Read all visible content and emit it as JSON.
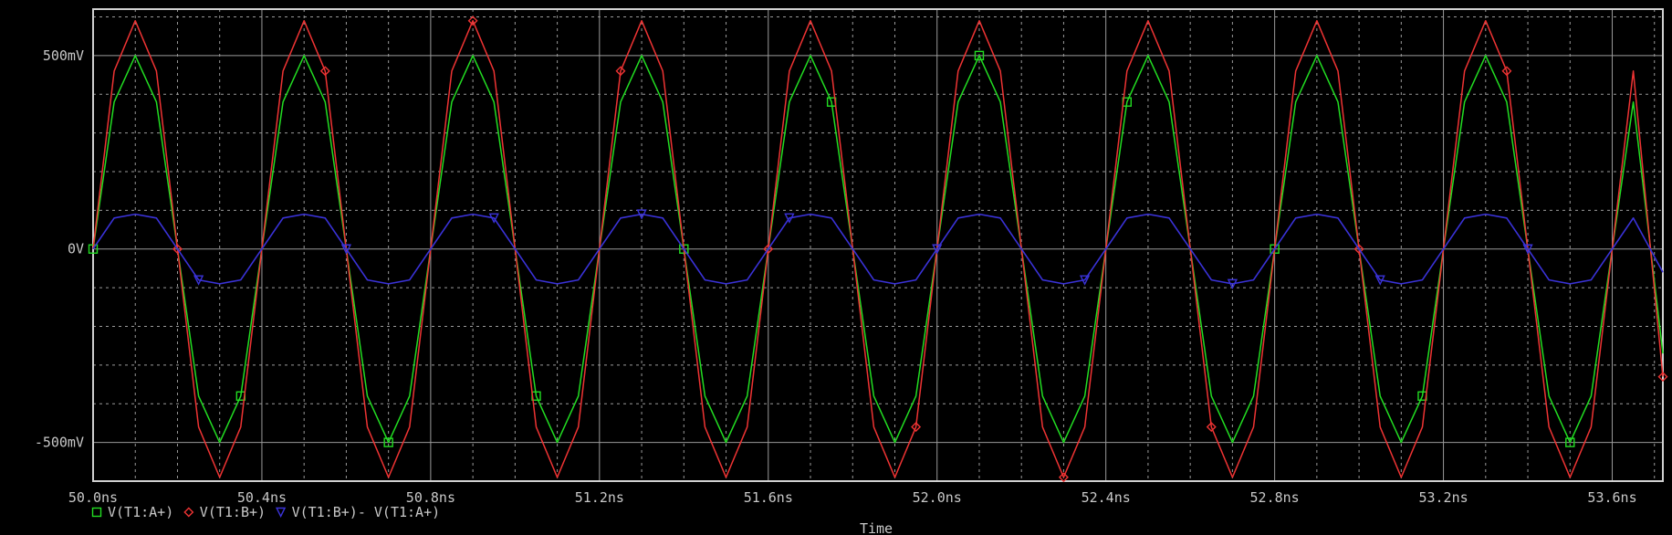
{
  "chart_data": {
    "type": "line",
    "xlabel": "Time",
    "x_unit": "ns",
    "xlim": [
      50.0,
      53.72
    ],
    "ylim": [
      -0.6,
      0.62
    ],
    "y_unit": "V",
    "grid": true,
    "background": "#000000",
    "x_ticks": [
      {
        "value": 50.0,
        "label": "50.0ns"
      },
      {
        "value": 50.4,
        "label": "50.4ns"
      },
      {
        "value": 50.8,
        "label": "50.8ns"
      },
      {
        "value": 51.2,
        "label": "51.2ns"
      },
      {
        "value": 51.6,
        "label": "51.6ns"
      },
      {
        "value": 52.0,
        "label": "52.0ns"
      },
      {
        "value": 52.4,
        "label": "52.4ns"
      },
      {
        "value": 52.8,
        "label": "52.8ns"
      },
      {
        "value": 53.2,
        "label": "53.2ns"
      },
      {
        "value": 53.6,
        "label": "53.6ns"
      }
    ],
    "y_ticks": [
      {
        "value": 0.5,
        "label": "500mV"
      },
      {
        "value": 0.0,
        "label": "0V"
      },
      {
        "value": -0.5,
        "label": "-500mV"
      }
    ],
    "series": [
      {
        "name": "V(T1:A+)",
        "color": "#22dd22",
        "marker": "square",
        "x": [
          50.0,
          50.05,
          50.1,
          50.15,
          50.2,
          50.25,
          50.3,
          50.35,
          50.4,
          50.45,
          50.5,
          50.55,
          50.6,
          50.65,
          50.7,
          50.75,
          50.8,
          50.85,
          50.9,
          50.95,
          51.0,
          51.05,
          51.1,
          51.15,
          51.2,
          51.25,
          51.3,
          51.35,
          51.4,
          51.45,
          51.5,
          51.55,
          51.6,
          51.65,
          51.7,
          51.75,
          51.8,
          51.85,
          51.9,
          51.95,
          52.0,
          52.05,
          52.1,
          52.15,
          52.2,
          52.25,
          52.3,
          52.35,
          52.4,
          52.45,
          52.5,
          52.55,
          52.6,
          52.65,
          52.7,
          52.75,
          52.8,
          52.85,
          52.9,
          52.95,
          53.0,
          53.05,
          53.1,
          53.15,
          53.2,
          53.25,
          53.3,
          53.35,
          53.4,
          53.45,
          53.5,
          53.55,
          53.6,
          53.65,
          53.72
        ],
        "y": [
          0.0,
          0.38,
          0.5,
          0.38,
          0.0,
          -0.38,
          -0.5,
          -0.38,
          0.0,
          0.38,
          0.5,
          0.38,
          0.0,
          -0.38,
          -0.5,
          -0.38,
          0.0,
          0.38,
          0.5,
          0.38,
          0.0,
          -0.38,
          -0.5,
          -0.38,
          0.0,
          0.38,
          0.5,
          0.38,
          0.0,
          -0.38,
          -0.5,
          -0.38,
          0.0,
          0.38,
          0.5,
          0.38,
          0.0,
          -0.38,
          -0.5,
          -0.38,
          0.0,
          0.38,
          0.5,
          0.38,
          0.0,
          -0.38,
          -0.5,
          -0.38,
          0.0,
          0.38,
          0.5,
          0.38,
          0.0,
          -0.38,
          -0.5,
          -0.38,
          0.0,
          0.38,
          0.5,
          0.38,
          0.0,
          -0.38,
          -0.5,
          -0.38,
          0.0,
          0.38,
          0.5,
          0.38,
          0.0,
          -0.38,
          -0.5,
          -0.38,
          0.0,
          0.38,
          -0.27
        ]
      },
      {
        "name": "V(T1:B+)",
        "color": "#ee3333",
        "marker": "diamond",
        "x": [
          50.0,
          50.05,
          50.1,
          50.15,
          50.2,
          50.25,
          50.3,
          50.35,
          50.4,
          50.45,
          50.5,
          50.55,
          50.6,
          50.65,
          50.7,
          50.75,
          50.8,
          50.85,
          50.9,
          50.95,
          51.0,
          51.05,
          51.1,
          51.15,
          51.2,
          51.25,
          51.3,
          51.35,
          51.4,
          51.45,
          51.5,
          51.55,
          51.6,
          51.65,
          51.7,
          51.75,
          51.8,
          51.85,
          51.9,
          51.95,
          52.0,
          52.05,
          52.1,
          52.15,
          52.2,
          52.25,
          52.3,
          52.35,
          52.4,
          52.45,
          52.5,
          52.55,
          52.6,
          52.65,
          52.7,
          52.75,
          52.8,
          52.85,
          52.9,
          52.95,
          53.0,
          53.05,
          53.1,
          53.15,
          53.2,
          53.25,
          53.3,
          53.35,
          53.4,
          53.45,
          53.5,
          53.55,
          53.6,
          53.65,
          53.72
        ],
        "y": [
          0.0,
          0.46,
          0.59,
          0.46,
          0.0,
          -0.46,
          -0.59,
          -0.46,
          0.0,
          0.46,
          0.59,
          0.46,
          0.0,
          -0.46,
          -0.59,
          -0.46,
          0.0,
          0.46,
          0.59,
          0.46,
          0.0,
          -0.46,
          -0.59,
          -0.46,
          0.0,
          0.46,
          0.59,
          0.46,
          0.0,
          -0.46,
          -0.59,
          -0.46,
          0.0,
          0.46,
          0.59,
          0.46,
          0.0,
          -0.46,
          -0.59,
          -0.46,
          0.0,
          0.46,
          0.59,
          0.46,
          0.0,
          -0.46,
          -0.59,
          -0.46,
          0.0,
          0.46,
          0.59,
          0.46,
          0.0,
          -0.46,
          -0.59,
          -0.46,
          0.0,
          0.46,
          0.59,
          0.46,
          0.0,
          -0.46,
          -0.59,
          -0.46,
          0.0,
          0.46,
          0.59,
          0.46,
          0.0,
          -0.46,
          -0.59,
          -0.46,
          0.0,
          0.46,
          -0.33
        ]
      },
      {
        "name": "V(T1:B+)- V(T1:A+)",
        "color": "#3a32d8",
        "marker": "triangle-down",
        "x": [
          50.0,
          50.05,
          50.1,
          50.15,
          50.2,
          50.25,
          50.3,
          50.35,
          50.4,
          50.45,
          50.5,
          50.55,
          50.6,
          50.65,
          50.7,
          50.75,
          50.8,
          50.85,
          50.9,
          50.95,
          51.0,
          51.05,
          51.1,
          51.15,
          51.2,
          51.25,
          51.3,
          51.35,
          51.4,
          51.45,
          51.5,
          51.55,
          51.6,
          51.65,
          51.7,
          51.75,
          51.8,
          51.85,
          51.9,
          51.95,
          52.0,
          52.05,
          52.1,
          52.15,
          52.2,
          52.25,
          52.3,
          52.35,
          52.4,
          52.45,
          52.5,
          52.55,
          52.6,
          52.65,
          52.7,
          52.75,
          52.8,
          52.85,
          52.9,
          52.95,
          53.0,
          53.05,
          53.1,
          53.15,
          53.2,
          53.25,
          53.3,
          53.35,
          53.4,
          53.45,
          53.5,
          53.55,
          53.6,
          53.65,
          53.72
        ],
        "y": [
          0.0,
          0.08,
          0.09,
          0.08,
          0.0,
          -0.08,
          -0.09,
          -0.08,
          0.0,
          0.08,
          0.09,
          0.08,
          0.0,
          -0.08,
          -0.09,
          -0.08,
          0.0,
          0.08,
          0.09,
          0.08,
          0.0,
          -0.08,
          -0.09,
          -0.08,
          0.0,
          0.08,
          0.09,
          0.08,
          0.0,
          -0.08,
          -0.09,
          -0.08,
          0.0,
          0.08,
          0.09,
          0.08,
          0.0,
          -0.08,
          -0.09,
          -0.08,
          0.0,
          0.08,
          0.09,
          0.08,
          0.0,
          -0.08,
          -0.09,
          -0.08,
          0.0,
          0.08,
          0.09,
          0.08,
          0.0,
          -0.08,
          -0.09,
          -0.08,
          0.0,
          0.08,
          0.09,
          0.08,
          0.0,
          -0.08,
          -0.09,
          -0.08,
          0.0,
          0.08,
          0.09,
          0.08,
          0.0,
          -0.08,
          -0.09,
          -0.08,
          0.0,
          0.08,
          -0.06
        ]
      }
    ]
  }
}
